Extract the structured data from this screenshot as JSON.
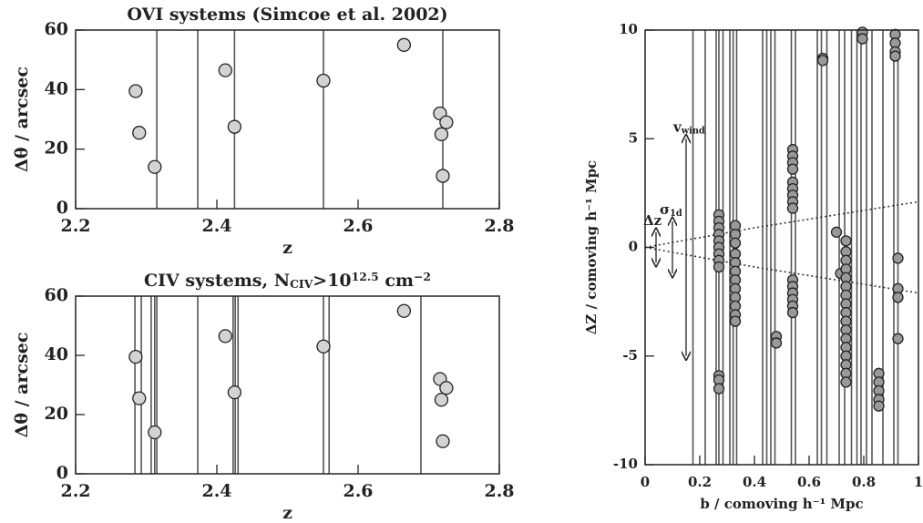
{
  "chart_data": [
    {
      "type": "scatter",
      "title": [
        "OVI systems (Simcoe et al. 2002)"
      ],
      "title_format": [
        "normal"
      ],
      "xlabel": "z",
      "ylabel": "Δθ / arcsec",
      "xlim": [
        2.2,
        2.8
      ],
      "ylim": [
        0,
        60
      ],
      "xticks": [
        2.2,
        2.4,
        2.6,
        2.8
      ],
      "yticks": [
        0,
        20,
        40,
        60
      ],
      "vlines": [
        2.315,
        2.373,
        2.425,
        2.551,
        2.72
      ],
      "x": [
        2.285,
        2.29,
        2.312,
        2.412,
        2.425,
        2.551,
        2.665,
        2.716,
        2.725,
        2.718,
        2.72
      ],
      "y": [
        39.5,
        25.5,
        14,
        46.5,
        27.5,
        43,
        55,
        32,
        29,
        25,
        11
      ],
      "color": "#d3d3d3",
      "line_color": "#555555"
    },
    {
      "type": "scatter",
      "title": [
        "CIV systems, N",
        "CIV",
        ">10",
        "12.5",
        " cm",
        "−2"
      ],
      "title_format": [
        "normal",
        "sub",
        "normal",
        "sup",
        "normal",
        "sup"
      ],
      "xlabel": "z",
      "ylabel": "Δθ / arcsec",
      "xlim": [
        2.2,
        2.8
      ],
      "ylim": [
        0,
        60
      ],
      "xticks": [
        2.2,
        2.4,
        2.6,
        2.8
      ],
      "yticks": [
        0,
        20,
        40,
        60
      ],
      "vlines": [
        2.284,
        2.293,
        2.307,
        2.312,
        2.315,
        2.373,
        2.423,
        2.426,
        2.43,
        2.551,
        2.559,
        2.689
      ],
      "x": [
        2.285,
        2.29,
        2.312,
        2.412,
        2.425,
        2.551,
        2.665,
        2.716,
        2.725,
        2.718,
        2.72
      ],
      "y": [
        39.5,
        25.5,
        14,
        46.5,
        27.5,
        43,
        55,
        32,
        29,
        25,
        11
      ],
      "color": "#d3d3d3",
      "line_color": "#555555"
    },
    {
      "type": "scatter",
      "xlabel": "b / comoving h⁻¹ Mpc",
      "ylabel": "ΔZ / comoving h⁻¹ Mpc",
      "xlim": [
        0,
        1
      ],
      "ylim": [
        -10,
        10
      ],
      "xticks": [
        0,
        0.2,
        0.4,
        0.6,
        0.8,
        1
      ],
      "yticks": [
        -10,
        -5,
        0,
        5,
        10
      ],
      "vlines": [
        0.175,
        0.22,
        0.26,
        0.27,
        0.285,
        0.31,
        0.322,
        0.335,
        0.43,
        0.445,
        0.46,
        0.475,
        0.535,
        0.55,
        0.63,
        0.645,
        0.665,
        0.71,
        0.73,
        0.755,
        0.775,
        0.79,
        0.81,
        0.83,
        0.87,
        0.91,
        0.925
      ],
      "x": [
        0.27,
        0.27,
        0.27,
        0.27,
        0.27,
        0.27,
        0.27,
        0.27,
        0.27,
        0.27,
        0.27,
        0.27,
        0.33,
        0.33,
        0.33,
        0.33,
        0.33,
        0.33,
        0.33,
        0.33,
        0.33,
        0.33,
        0.33,
        0.33,
        0.48,
        0.48,
        0.54,
        0.54,
        0.54,
        0.54,
        0.54,
        0.54,
        0.54,
        0.54,
        0.54,
        0.54,
        0.54,
        0.54,
        0.54,
        0.54,
        0.54,
        0.65,
        0.65,
        0.7,
        0.715,
        0.735,
        0.735,
        0.735,
        0.735,
        0.735,
        0.735,
        0.735,
        0.735,
        0.735,
        0.735,
        0.735,
        0.735,
        0.735,
        0.735,
        0.735,
        0.735,
        0.735,
        0.795,
        0.795,
        0.855,
        0.855,
        0.855,
        0.855,
        0.855,
        0.915,
        0.915,
        0.915,
        0.915,
        0.925,
        0.925,
        0.925,
        0.925
      ],
      "y": [
        1.5,
        1.2,
        0.9,
        0.6,
        0.3,
        0,
        -0.3,
        -0.6,
        -0.9,
        -5.9,
        -6.1,
        -6.5,
        1.0,
        0.6,
        0.2,
        -0.3,
        -0.7,
        -1.1,
        -1.5,
        -1.9,
        -2.3,
        -2.7,
        -3.1,
        -3.4,
        -4.1,
        -4.4,
        4.5,
        4.2,
        3.9,
        3.6,
        3.0,
        2.7,
        2.4,
        2.1,
        1.8,
        -1.5,
        -1.8,
        -2.1,
        -2.4,
        -2.7,
        -3.0,
        8.7,
        8.6,
        0.7,
        -1.2,
        0.3,
        -0.2,
        -0.6,
        -1.0,
        -1.4,
        -1.8,
        -2.2,
        -2.6,
        -3.0,
        -3.4,
        -3.8,
        -4.2,
        -4.6,
        -5.0,
        -5.4,
        -5.8,
        -6.2,
        9.9,
        9.6,
        -5.8,
        -6.2,
        -6.6,
        -7.0,
        -7.3,
        9.8,
        9.4,
        9.0,
        8.8,
        -0.5,
        -1.9,
        -2.3,
        -4.2
      ],
      "color": "#999999",
      "line_color": "#555555",
      "curves": [
        {
          "x": [
            0,
            0.2,
            0.4,
            0.6,
            0.8,
            1
          ],
          "y": [
            0,
            0.45,
            0.9,
            1.3,
            1.7,
            2.1
          ]
        },
        {
          "x": [
            0,
            0.2,
            0.4,
            0.6,
            0.8,
            1
          ],
          "y": [
            0,
            -0.45,
            -0.9,
            -1.3,
            -1.7,
            -2.1
          ]
        }
      ],
      "arrows": [
        {
          "label": [
            "v",
            "wind"
          ],
          "label_format": [
            "normal",
            "sub"
          ],
          "x": 0.15,
          "y0": -5,
          "y1": 5
        },
        {
          "label": [
            "σ",
            "1d"
          ],
          "label_format": [
            "normal",
            "sub"
          ],
          "x": 0.1,
          "y0": -1.2,
          "y1": 1.2
        },
        {
          "label": [
            "Δz"
          ],
          "label_format": [
            "normal"
          ],
          "x": 0.04,
          "y0": -0.7,
          "y1": 0.7
        }
      ]
    }
  ]
}
